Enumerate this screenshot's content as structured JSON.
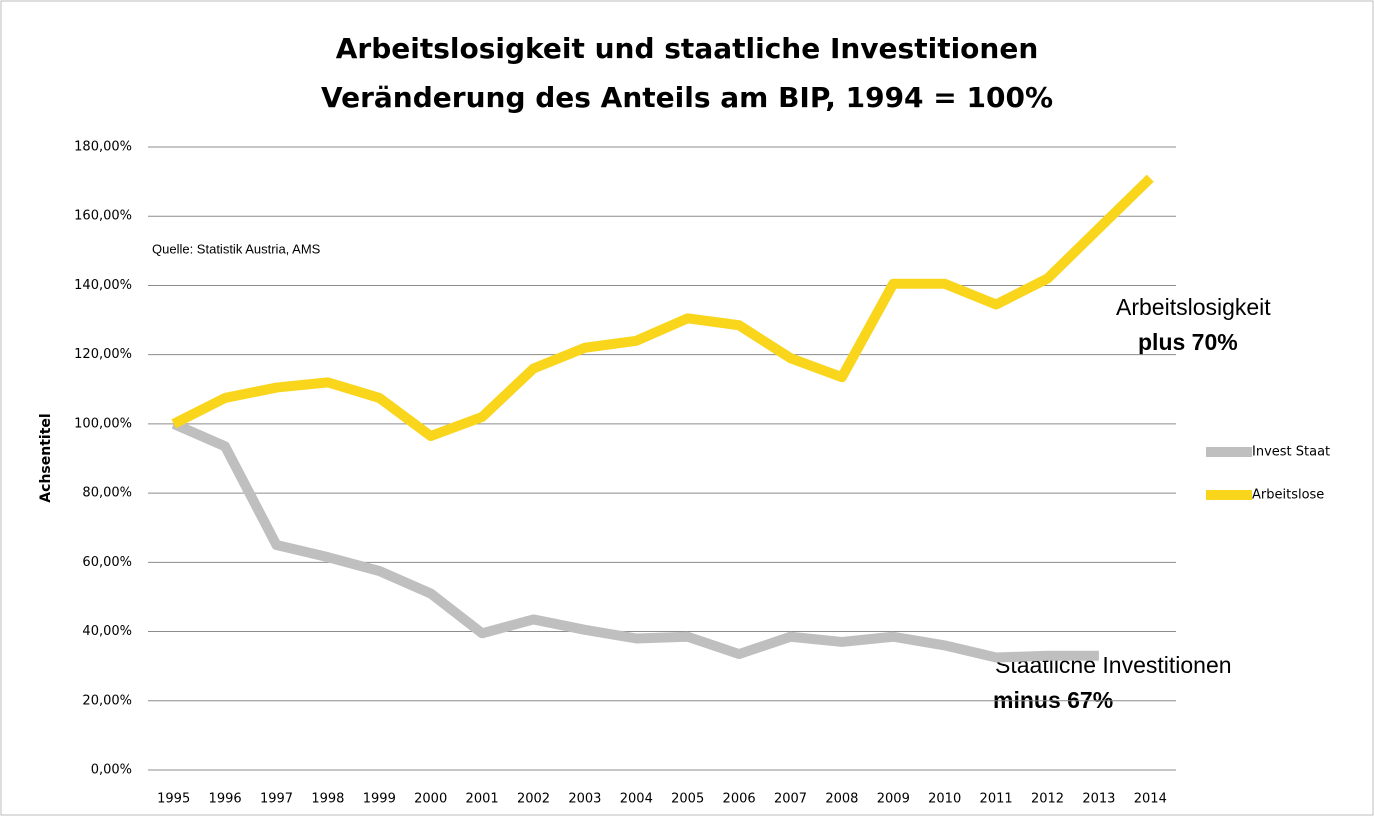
{
  "chart_data": {
    "type": "line",
    "title": [
      "Arbeitslosigkeit und staatliche Investitionen",
      "Veränderung des Anteils am BIP, 1994 = 100%"
    ],
    "ylabel": "Achsentitel",
    "categories": [
      "1995",
      "1996",
      "1997",
      "1998",
      "1999",
      "2000",
      "2001",
      "2002",
      "2003",
      "2004",
      "2005",
      "2006",
      "2007",
      "2008",
      "2009",
      "2010",
      "2011",
      "2012",
      "2013",
      "2014"
    ],
    "series": [
      {
        "name": "Invest Staat",
        "color": "#bfbfbf",
        "values": [
          100,
          93.5,
          65,
          61.5,
          57.5,
          51,
          39.5,
          43.5,
          40.5,
          38,
          38.5,
          33.5,
          38.5,
          37,
          38.5,
          36,
          32.5,
          33,
          33,
          null
        ]
      },
      {
        "name": "Arbeitslose",
        "color": "#f9d51c",
        "values": [
          100,
          107.5,
          110.5,
          112,
          107.5,
          96.5,
          102,
          116,
          122,
          124,
          130.5,
          128.5,
          119,
          113.5,
          140.5,
          140.5,
          134.5,
          142,
          156.5,
          171
        ]
      }
    ],
    "ylim": [
      0,
      180
    ],
    "yticks": [
      {
        "value": 0,
        "label": "0,00%"
      },
      {
        "value": 20,
        "label": "20,00%"
      },
      {
        "value": 40,
        "label": "40,00%"
      },
      {
        "value": 60,
        "label": "60,00%"
      },
      {
        "value": 80,
        "label": "80,00%"
      },
      {
        "value": 100,
        "label": "100,00%"
      },
      {
        "value": 120,
        "label": "120,00%"
      },
      {
        "value": 140,
        "label": "140,00%"
      },
      {
        "value": 160,
        "label": "160,00%"
      },
      {
        "value": 180,
        "label": "180,00%"
      }
    ],
    "grid": true,
    "legend": "right",
    "annotations": [
      "Quelle: Statistik Austria, AMS",
      "Arbeitslosigkeit",
      "plus 70%",
      "Staatliche Investitionen",
      "minus 67%"
    ]
  }
}
